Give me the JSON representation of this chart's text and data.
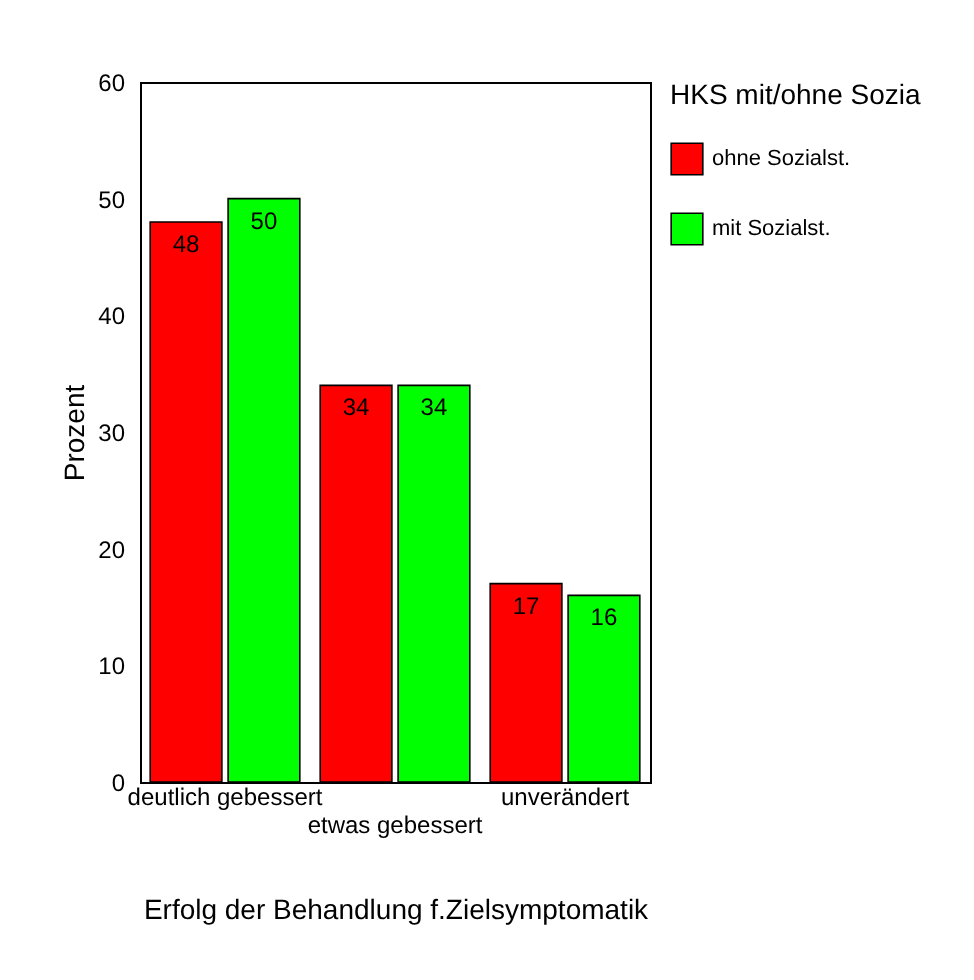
{
  "chart_data": {
    "type": "bar",
    "xlabel": "Erfolg der Behandlung f.Zielsymptomatik",
    "ylabel": "Prozent",
    "legend_title": "HKS mit/ohne Sozia",
    "categories": [
      "deutlich gebessert",
      "etwas gebessert",
      "unverändert"
    ],
    "series": [
      {
        "name": "ohne Sozialst.",
        "color": "#ff0000",
        "values": [
          48,
          34,
          17
        ]
      },
      {
        "name": "mit Sozialst.",
        "color": "#00ff00",
        "values": [
          50,
          34,
          16
        ]
      }
    ],
    "ylim": [
      0,
      60
    ],
    "yticks": [
      0,
      10,
      20,
      30,
      40,
      50,
      60
    ],
    "grid": false,
    "legend": "right",
    "data_labels": true
  }
}
